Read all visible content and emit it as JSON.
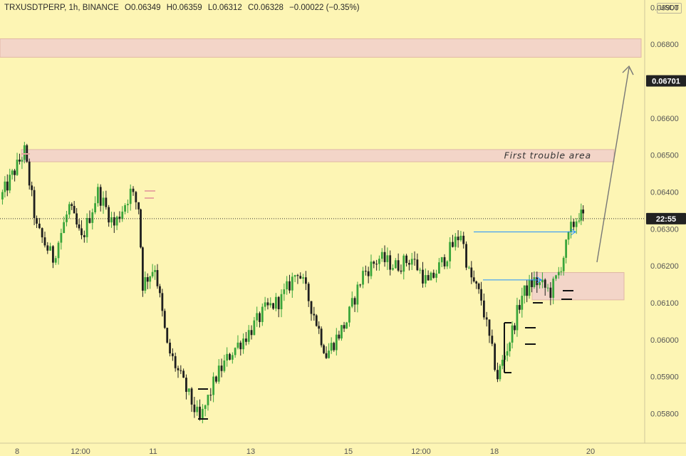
{
  "header": {
    "symbol": "TRXUSDTPERP, 1h, BINANCE",
    "open": "O0.06349",
    "high": "H0.06359",
    "low": "L0.06312",
    "close": "C0.06328",
    "change": "−0.00022 (−0.35%)"
  },
  "currency": "USDT",
  "chart_data": {
    "type": "candlestick",
    "symbol": "TRXUSDTPERP",
    "interval": "1h",
    "exchange": "BINANCE",
    "ylim": [
      0.0572,
      0.0692
    ],
    "y_ticks": [
      "0.06900",
      "0.06800",
      "0.06600",
      "0.06500",
      "0.06400",
      "0.06300",
      "0.06200",
      "0.06100",
      "0.06000",
      "0.05900",
      "0.05800"
    ],
    "x_ticks": [
      "8",
      "12:00",
      "11",
      "13",
      "15",
      "12:00",
      "18",
      "20"
    ],
    "price_tags": [
      {
        "label": "0.06701",
        "value": 0.06701,
        "color": "#222222"
      },
      {
        "label": "22:55",
        "value": 0.06328,
        "color": "#222222"
      }
    ],
    "zones": [
      {
        "y_low": 0.06765,
        "y_high": 0.06815
      },
      {
        "y_low": 0.06482,
        "y_high": 0.06515,
        "label": "First trouble area"
      },
      {
        "y_low": 0.06108,
        "y_high": 0.06182
      }
    ],
    "path_points": [
      [
        0.0,
        0.0638
      ],
      [
        3.0,
        0.0651
      ],
      [
        4.5,
        0.063
      ],
      [
        6.5,
        0.0622
      ],
      [
        8.5,
        0.0636
      ],
      [
        10.0,
        0.0627
      ],
      [
        12.0,
        0.064
      ],
      [
        14.0,
        0.0631
      ],
      [
        16.0,
        0.064
      ],
      [
        17.0,
        0.0636
      ],
      [
        17.5,
        0.0615
      ],
      [
        19.0,
        0.062
      ],
      [
        20.5,
        0.0598
      ],
      [
        22.5,
        0.0588
      ],
      [
        24.5,
        0.0578
      ],
      [
        26.5,
        0.059
      ],
      [
        28.5,
        0.0597
      ],
      [
        30.5,
        0.0602
      ],
      [
        32.5,
        0.0608
      ],
      [
        34.5,
        0.0611
      ],
      [
        36.5,
        0.0619
      ],
      [
        38.5,
        0.0607
      ],
      [
        40.0,
        0.0596
      ],
      [
        42.5,
        0.0605
      ],
      [
        44.5,
        0.0618
      ],
      [
        46.5,
        0.0622
      ],
      [
        48.5,
        0.062
      ],
      [
        50.5,
        0.0622
      ],
      [
        52.5,
        0.0615
      ],
      [
        54.5,
        0.0622
      ],
      [
        56.5,
        0.0629
      ],
      [
        57.5,
        0.0618
      ],
      [
        59.0,
        0.0611
      ],
      [
        60.0,
        0.06
      ],
      [
        61.0,
        0.059
      ],
      [
        62.5,
        0.06
      ],
      [
        64.0,
        0.0612
      ],
      [
        65.5,
        0.0616
      ],
      [
        67.5,
        0.0613
      ],
      [
        68.5,
        0.0618
      ],
      [
        70.0,
        0.063
      ],
      [
        71.0,
        0.0634
      ],
      [
        71.5,
        0.0633
      ]
    ],
    "series": [
      {
        "type": "candlestick",
        "up_color": "#3aa53a",
        "down_color": "#1e1e1e"
      }
    ]
  }
}
